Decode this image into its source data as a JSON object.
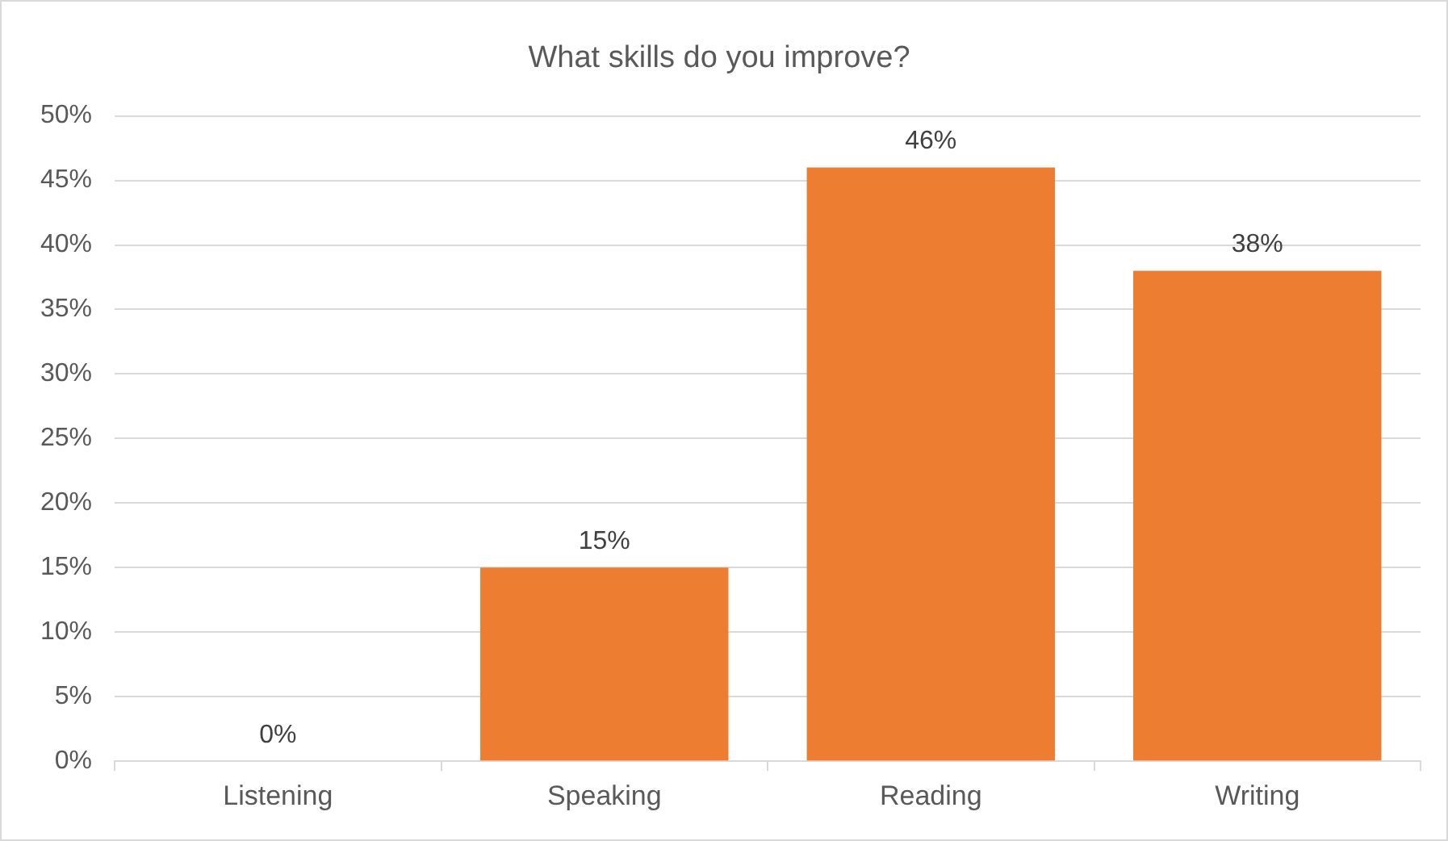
{
  "chart_data": {
    "type": "bar",
    "title": "What skills do you improve?",
    "categories": [
      "Listening",
      "Speaking",
      "Reading",
      "Writing"
    ],
    "values": [
      0,
      15,
      46,
      38
    ],
    "color": "#ed7d31",
    "value_labels": [
      "0%",
      "15%",
      "46%",
      "38%"
    ],
    "ylim": [
      0,
      50
    ],
    "yticks": [
      {
        "value": 0,
        "label": "0%"
      },
      {
        "value": 5,
        "label": "5%"
      },
      {
        "value": 10,
        "label": "10%"
      },
      {
        "value": 15,
        "label": "15%"
      },
      {
        "value": 20,
        "label": "20%"
      },
      {
        "value": 25,
        "label": "25%"
      },
      {
        "value": 30,
        "label": "30%"
      },
      {
        "value": 35,
        "label": "35%"
      },
      {
        "value": 40,
        "label": "40%"
      },
      {
        "value": 45,
        "label": "45%"
      },
      {
        "value": 50,
        "label": "50%"
      }
    ],
    "grid": "y",
    "legend": false
  }
}
